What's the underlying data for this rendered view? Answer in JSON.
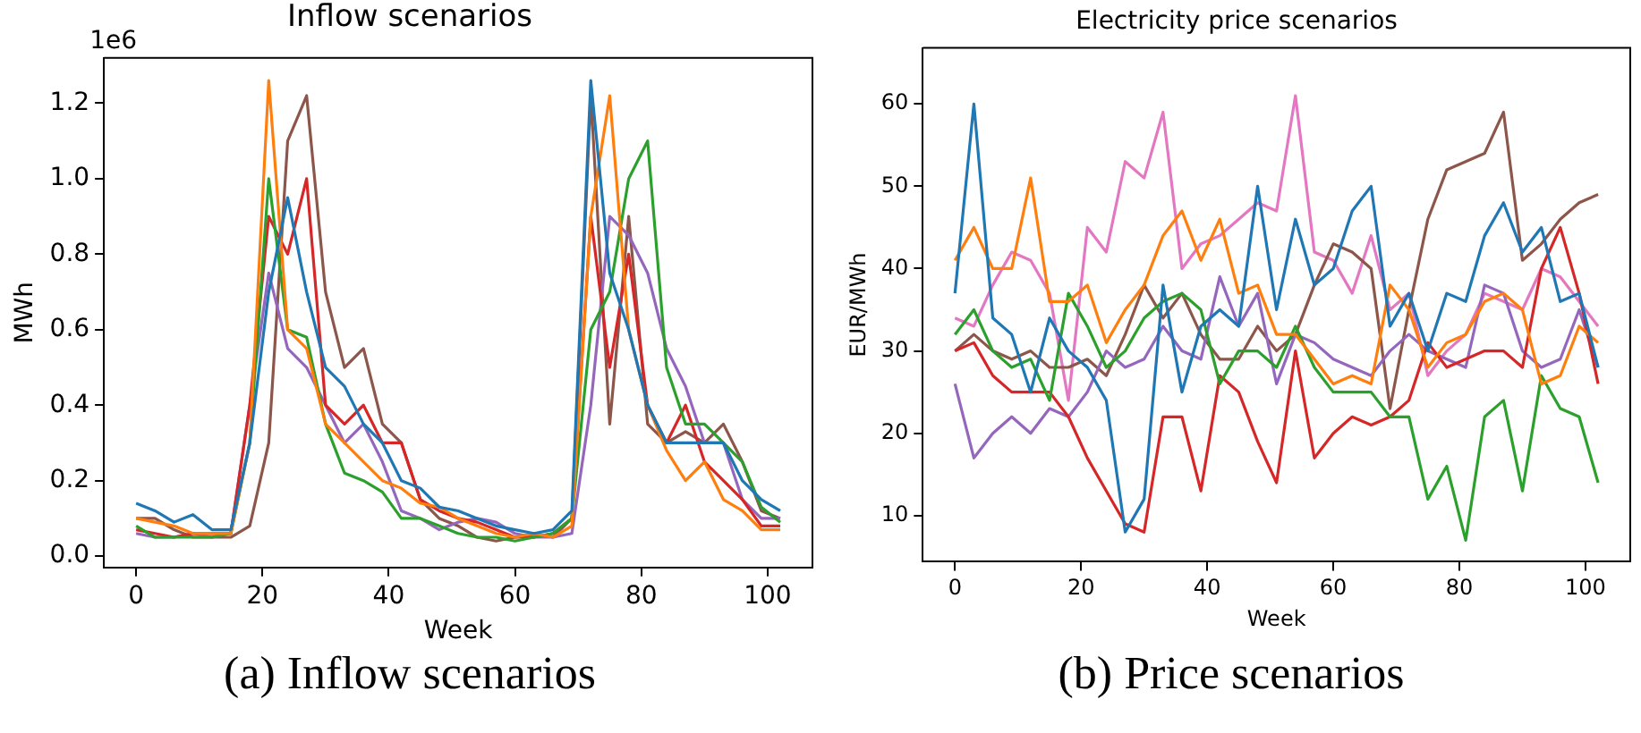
{
  "chart_data": [
    {
      "type": "line",
      "title": "Inflow scenarios",
      "xlabel": "Week",
      "ylabel": "MWh",
      "annotations": [
        "1e6",
        "(a) Inflow scenarios"
      ],
      "grid": false,
      "legend": false,
      "marker": "none",
      "line_style": "solid",
      "x": [
        0,
        3,
        6,
        9,
        12,
        15,
        18,
        21,
        24,
        27,
        30,
        33,
        36,
        39,
        42,
        45,
        48,
        51,
        54,
        57,
        60,
        63,
        66,
        69,
        72,
        75,
        78,
        81,
        84,
        87,
        90,
        93,
        96,
        99,
        102
      ],
      "xlim": [
        -5.1,
        107.1
      ],
      "xticks": [
        0,
        20,
        40,
        60,
        80,
        100
      ],
      "ylim": [
        -0.03,
        1.32
      ],
      "yticks": [
        {
          "value": 0,
          "label": "0.0"
        },
        {
          "value": 0.2,
          "label": "0.2"
        },
        {
          "value": 0.4,
          "label": "0.4"
        },
        {
          "value": 0.6,
          "label": "0.6"
        },
        {
          "value": 0.8,
          "label": "0.8"
        },
        {
          "value": 1,
          "label": "1.0"
        },
        {
          "value": 1.2,
          "label": "1.2"
        }
      ],
      "series": [
        {
          "color": "#1f77b4",
          "values": [
            0.14,
            0.12,
            0.09,
            0.11,
            0.07,
            0.07,
            0.3,
            0.7,
            0.95,
            0.7,
            0.5,
            0.45,
            0.35,
            0.3,
            0.2,
            0.18,
            0.13,
            0.12,
            0.1,
            0.08,
            0.07,
            0.06,
            0.07,
            0.12,
            1.26,
            0.75,
            0.6,
            0.4,
            0.3,
            0.3,
            0.3,
            0.3,
            0.2,
            0.15,
            0.12
          ]
        },
        {
          "color": "#ff7f0e",
          "values": [
            0.1,
            0.09,
            0.08,
            0.06,
            0.06,
            0.06,
            0.3,
            1.26,
            0.6,
            0.55,
            0.35,
            0.3,
            0.25,
            0.2,
            0.18,
            0.14,
            0.13,
            0.1,
            0.08,
            0.06,
            0.05,
            0.06,
            0.05,
            0.08,
            0.9,
            1.22,
            0.6,
            0.4,
            0.28,
            0.2,
            0.25,
            0.15,
            0.12,
            0.07,
            0.07
          ]
        },
        {
          "color": "#2ca02c",
          "values": [
            0.08,
            0.05,
            0.05,
            0.05,
            0.05,
            0.06,
            0.3,
            1.0,
            0.6,
            0.58,
            0.35,
            0.22,
            0.2,
            0.17,
            0.1,
            0.1,
            0.08,
            0.06,
            0.05,
            0.05,
            0.04,
            0.05,
            0.06,
            0.1,
            0.6,
            0.7,
            1.0,
            1.1,
            0.5,
            0.35,
            0.35,
            0.3,
            0.25,
            0.13,
            0.09
          ]
        },
        {
          "color": "#d62728",
          "values": [
            0.07,
            0.06,
            0.05,
            0.06,
            0.06,
            0.06,
            0.4,
            0.9,
            0.8,
            1.0,
            0.4,
            0.35,
            0.4,
            0.3,
            0.3,
            0.15,
            0.12,
            0.1,
            0.09,
            0.07,
            0.05,
            0.05,
            0.06,
            0.1,
            0.9,
            0.5,
            0.8,
            0.4,
            0.3,
            0.4,
            0.25,
            0.2,
            0.15,
            0.08,
            0.08
          ]
        },
        {
          "color": "#9467bd",
          "values": [
            0.06,
            0.05,
            0.05,
            0.06,
            0.05,
            0.06,
            0.4,
            0.75,
            0.55,
            0.5,
            0.4,
            0.3,
            0.35,
            0.25,
            0.12,
            0.1,
            0.07,
            0.09,
            0.1,
            0.09,
            0.06,
            0.05,
            0.05,
            0.06,
            0.4,
            0.9,
            0.85,
            0.75,
            0.55,
            0.45,
            0.3,
            0.3,
            0.15,
            0.1,
            0.1
          ]
        },
        {
          "color": "#8c564b",
          "values": [
            0.1,
            0.1,
            0.07,
            0.05,
            0.05,
            0.05,
            0.08,
            0.3,
            1.1,
            1.22,
            0.7,
            0.5,
            0.55,
            0.35,
            0.3,
            0.15,
            0.1,
            0.08,
            0.05,
            0.04,
            0.05,
            0.06,
            0.05,
            0.1,
            1.22,
            0.35,
            0.9,
            0.35,
            0.3,
            0.33,
            0.3,
            0.35,
            0.25,
            0.12,
            0.1
          ]
        }
      ]
    },
    {
      "type": "line",
      "title": "Electricity price scenarios",
      "xlabel": "Week",
      "ylabel": "EUR/MWh",
      "annotations": [
        "(b) Price scenarios"
      ],
      "grid": false,
      "legend": false,
      "marker": "none",
      "line_style": "solid",
      "x": [
        0,
        3,
        6,
        9,
        12,
        15,
        18,
        21,
        24,
        27,
        30,
        33,
        36,
        39,
        42,
        45,
        48,
        51,
        54,
        57,
        60,
        63,
        66,
        69,
        72,
        75,
        78,
        81,
        84,
        87,
        90,
        93,
        96,
        99,
        102
      ],
      "xlim": [
        -5.1,
        107.1
      ],
      "xticks": [
        0,
        20,
        40,
        60,
        80,
        100
      ],
      "ylim": [
        4.4,
        66.8
      ],
      "yticks": [
        10,
        20,
        30,
        40,
        50,
        60
      ],
      "series": [
        {
          "color": "#1f77b4",
          "values": [
            37,
            60,
            34,
            32,
            25,
            34,
            30,
            28,
            24,
            8,
            12,
            38,
            25,
            33,
            35,
            33,
            50,
            35,
            46,
            38,
            40,
            47,
            50,
            33,
            37,
            30,
            37,
            36,
            44,
            48,
            42,
            45,
            36,
            37,
            28
          ]
        },
        {
          "color": "#ff7f0e",
          "values": [
            41,
            45,
            40,
            40,
            51,
            36,
            36,
            38,
            31,
            35,
            38,
            44,
            47,
            41,
            46,
            37,
            38,
            32,
            32,
            29,
            26,
            27,
            26,
            38,
            35,
            28,
            31,
            32,
            36,
            37,
            35,
            26,
            27,
            33,
            31
          ]
        },
        {
          "color": "#2ca02c",
          "values": [
            32,
            35,
            30,
            28,
            29,
            24,
            37,
            33,
            28,
            30,
            34,
            36,
            37,
            35,
            26,
            30,
            30,
            28,
            33,
            28,
            25,
            25,
            25,
            22,
            22,
            12,
            16,
            7,
            22,
            24,
            13,
            27,
            23,
            22,
            14
          ]
        },
        {
          "color": "#d62728",
          "values": [
            30,
            31,
            27,
            25,
            25,
            25,
            22,
            17,
            13,
            9,
            8,
            22,
            22,
            13,
            27,
            25,
            19,
            14,
            30,
            17,
            20,
            22,
            21,
            22,
            24,
            31,
            28,
            29,
            30,
            30,
            28,
            40,
            45,
            37,
            26
          ]
        },
        {
          "color": "#9467bd",
          "values": [
            26,
            17,
            20,
            22,
            20,
            23,
            22,
            25,
            30,
            28,
            29,
            33,
            30,
            29,
            39,
            33,
            37,
            26,
            32,
            31,
            29,
            28,
            27,
            30,
            32,
            30,
            29,
            28,
            38,
            37,
            30,
            28,
            29,
            35,
            28
          ]
        },
        {
          "color": "#8c564b",
          "values": [
            30,
            32,
            30,
            29,
            30,
            28,
            28,
            29,
            27,
            32,
            38,
            34,
            37,
            32,
            29,
            29,
            33,
            30,
            32,
            38,
            43,
            42,
            40,
            23,
            35,
            46,
            52,
            53,
            54,
            59,
            41,
            43,
            46,
            48,
            49
          ]
        },
        {
          "color": "#e377c2",
          "values": [
            34,
            33,
            38,
            42,
            41,
            37,
            24,
            45,
            42,
            53,
            51,
            59,
            40,
            43,
            44,
            46,
            48,
            47,
            61,
            42,
            41,
            37,
            44,
            35,
            37,
            27,
            30,
            32,
            37,
            36,
            35,
            40,
            39,
            36,
            33
          ]
        }
      ]
    }
  ]
}
